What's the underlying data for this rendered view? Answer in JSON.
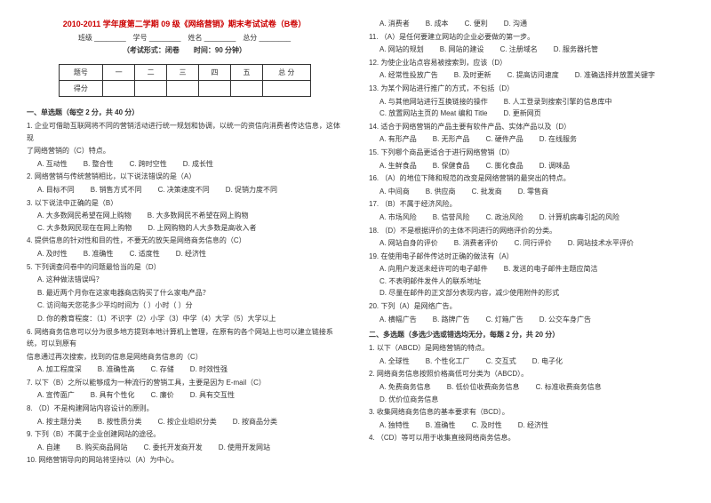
{
  "header": {
    "title": "2010-2011 学年度第二学期 09 级《网络营销》期末考试试卷（B卷）",
    "fields_line": "班级 ________　学号 ________　姓名 ________　总分 ________",
    "exam_info": "（考试形式：闭卷　　时间：90 分钟）"
  },
  "score_table": {
    "headers": [
      "题号",
      "一",
      "二",
      "三",
      "四",
      "五",
      "总 分"
    ],
    "row_label": "得分"
  },
  "sec1_title": "一、单选题（每空 2 分，共 40 分）",
  "sec2_title": "二、多选题（多选少选或错选均无分，每题 2 分，共 20 分）",
  "q_left": [
    {
      "n": "1.",
      "t": "企业可借助互联网将不同的营销活动进行统一规划和协调，以统一的资信向消费者传达信息，这体现",
      "cont": "了网络营销的（C）特点。",
      "o": [
        "A. 互动性",
        "B. 整合性",
        "C. 跨时空性",
        "D. 成长性"
      ]
    },
    {
      "n": "2.",
      "t": "网络营销与传统营销相比，以下说法错误的是（A）",
      "o": [
        "A. 目标不同",
        "B. 销售方式不同",
        "C. 决策速度不同",
        "D. 促销力度不同"
      ]
    },
    {
      "n": "3.",
      "t": "以下说法中正确的是（B）",
      "o": [
        "A. 大多数网民希望在网上购物",
        "B. 大多数网民不希望在网上购物",
        "C. 大多数网民现在在网上购物",
        "D. 上网购物的人大多数是高收入者"
      ]
    },
    {
      "n": "4.",
      "t": "提供信息的针对性和目的性，不要无的放矢是网络商务信息的（C）",
      "o": [
        "A. 及时性",
        "B. 准确性",
        "C. 适度性",
        "D. 经济性"
      ]
    },
    {
      "n": "5.",
      "t": "下列调查问卷中的问题最恰当的是（D）",
      "o": [
        "A. 这种做法错误吗？",
        "B. 最近两个月你在这家电器商店购买了什么家电产品？",
        "C. 访问每天您花多少平均时间为（ ）小时（ ）分",
        "D. 你的教育程度：（1）不识字（2）小学（3）中学（4）大学（5）大学以上"
      ],
      "optsBlock": true
    },
    {
      "n": "6.",
      "t": "网络商务信息可以分为很多地方提到本地计算机上管理，在原有的各个网站上也可以建立链接系统，可以到原有",
      "cont": "信息通过再次搜索，找到的信息是网络商务信息的（C）",
      "o": [
        "A. 加工程度深",
        "B. 准确性高",
        "C. 存储",
        "D. 时效性强"
      ]
    },
    {
      "n": "7.",
      "t": "以下（B）之所以能够成为一种流行的营销工具，主要是因为 E-mail（C）",
      "o": [
        "A. 宣传面广",
        "B. 具有个性化",
        "C. 廉价",
        "D. 具有交互性"
      ]
    },
    {
      "n": "8.",
      "t": "（D）不是构建网站内容设计的原则。",
      "o": [
        "A. 按主题分类",
        "B. 按性质分类",
        "C. 按企业组织分类",
        "D. 按商品分类"
      ]
    },
    {
      "n": "9.",
      "t": "下列（B）不属于企业创建网站的途径。",
      "o": [
        "A. 自建",
        "B. 购买商品网站",
        "C. 委托开发商开发",
        "D. 使用开发网站"
      ]
    },
    {
      "n": "10.",
      "t": "网络营销导向的网站将坚持以（A）为中心。"
    }
  ],
  "q_right": [
    {
      "o": [
        "A. 消费者",
        "B. 成本",
        "C. 便利",
        "D. 沟通"
      ]
    },
    {
      "n": "11.",
      "t": "（A）是任何要建立网站的企业必要做的第一步。",
      "o": [
        "A. 网站的规划",
        "B. 网站的建设",
        "C. 注册域名",
        "D. 服务器托管"
      ]
    },
    {
      "n": "12.",
      "t": "为使企业站点容易被搜索到，应该（D）",
      "o": [
        "A. 经常性投放广告",
        "B. 及时更新",
        "C. 提高访问速度",
        "D. 准确选择并放置关键字"
      ]
    },
    {
      "n": "13.",
      "t": "为某个网站进行推广的方式，不包括（D）",
      "o": [
        "A. 与其他网站进行互换链接的操作",
        "B. 人工登录到搜索引擎的信息库中",
        "C. 放置网站主页的 Meat 编和 Title",
        "D. 更新网页"
      ]
    },
    {
      "n": "14.",
      "t": "适合于网络营销的产品主要有软件产品、实体产品以及（D）",
      "o": [
        "A. 有形产品",
        "B. 无形产品",
        "C. 硬件产品",
        "D. 在线服务"
      ]
    },
    {
      "n": "15.",
      "t": "下列哪个商品更适合于进行网络营销（D）",
      "o": [
        "A. 生鲜食品",
        "B. 保健食品",
        "C. 膨化食品",
        "D. 调味品"
      ]
    },
    {
      "n": "16.",
      "t": "（A）的地位下降和规范的改变是网络营销的最突出的特点。",
      "o": [
        "A. 中间商",
        "B. 供应商",
        "C. 批发商",
        "D. 零售商"
      ]
    },
    {
      "n": "17.",
      "t": "（B）不属于经济风险。",
      "o": [
        "A. 市场风险",
        "B. 信誉风险",
        "C. 政治风险",
        "D. 计算机病毒引起的风险"
      ]
    },
    {
      "n": "18.",
      "t": "（D）不是根据评价的主体不同进行的网络评价的分类。",
      "o": [
        "A. 网站自身的评价",
        "B. 消费者评价",
        "C. 同行评价",
        "D. 网站技术水平评价"
      ]
    },
    {
      "n": "19.",
      "t": "在使用电子邮件传达时正确的做法有（A）",
      "o": [
        "A. 向用户发送未经许可的电子邮件",
        "B. 发送的电子邮件主题应简洁",
        "C. 不表明邮件发件人的联系地址",
        "D. 尽量在邮件的正文部分表现内容，减少使用附件的形式"
      ]
    },
    {
      "n": "20.",
      "t": "下列（A）是网络广告。",
      "o": [
        "A. 横幅广告",
        "B. 路牌广告",
        "C. 灯箱广告",
        "D. 公交车身广告"
      ]
    }
  ],
  "q_sec2": [
    {
      "n": "1.",
      "t": "以下（ABCD）是网络营销的特点。",
      "o": [
        "A. 全球性",
        "B. 个性化工厂",
        "C. 交互式",
        "D. 电子化"
      ]
    },
    {
      "n": "2.",
      "t": "网络商务信息按照价格高低可分类为（ABCD）。",
      "o": [
        "A. 免费商务信息",
        "B. 低价位收费商务信息",
        "C. 标准收费商务信息",
        "D. 优价位商务信息"
      ]
    },
    {
      "n": "3.",
      "t": "收集网络商务信息的基本要求有（BCD）。",
      "o": [
        "A. 独特性",
        "B. 准确性",
        "C. 及时性",
        "D. 经济性"
      ]
    },
    {
      "n": "4.",
      "t": "（CD）等可以用于收集直接网络商务信息。"
    }
  ]
}
